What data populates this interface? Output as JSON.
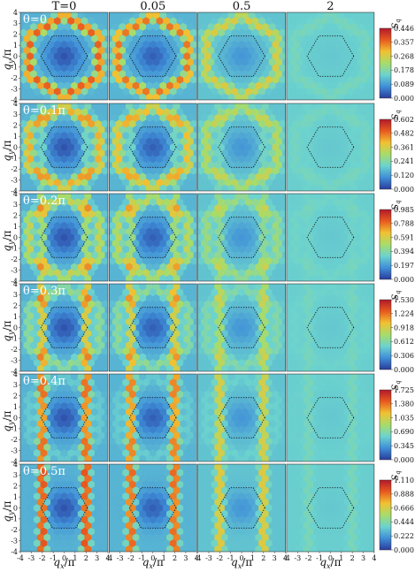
{
  "chart_data": {
    "type": "heatmap",
    "description_grid": "6 rows (theta) x 4 columns (temperature) of hexagonal-lattice structure factor maps",
    "columns": [
      {
        "label": "T=0",
        "T": 0
      },
      {
        "label": "0.05",
        "T": 0.05
      },
      {
        "label": "0.5",
        "T": 0.5
      },
      {
        "label": "2",
        "T": 2
      }
    ],
    "rows": [
      {
        "label": "θ=0",
        "colorbar": {
          "min": 0.0,
          "max": 0.446,
          "ticks": [
            "0.000",
            "0.089",
            "0.178",
            "0.268",
            "0.357",
            "0.446"
          ]
        }
      },
      {
        "label": "θ=0.1π",
        "colorbar": {
          "min": 0.0,
          "max": 0.602,
          "ticks": [
            "0.000",
            "0.120",
            "0.241",
            "0.361",
            "0.482",
            "0.602"
          ]
        }
      },
      {
        "label": "θ=0.2π",
        "colorbar": {
          "min": 0.0,
          "max": 0.985,
          "ticks": [
            "0.000",
            "0.197",
            "0.394",
            "0.591",
            "0.788",
            "0.985"
          ]
        }
      },
      {
        "label": "θ=0.3π",
        "colorbar": {
          "min": 0.0,
          "max": 1.53,
          "ticks": [
            "0.000",
            "0.306",
            "0.612",
            "0.918",
            "1.224",
            "1.530"
          ]
        }
      },
      {
        "label": "θ=0.4π",
        "colorbar": {
          "min": 0.0,
          "max": 1.725,
          "ticks": [
            "0.000",
            "0.345",
            "0.690",
            "1.035",
            "1.380",
            "1.725"
          ]
        }
      },
      {
        "label": "θ=0.5π",
        "colorbar": {
          "min": 0.0,
          "max": 1.11,
          "ticks": [
            "0.000",
            "0.222",
            "0.444",
            "0.666",
            "0.888",
            "1.110"
          ]
        }
      }
    ],
    "x_axis": {
      "label": "q_x/π",
      "ticks": [
        -4,
        -3,
        -2,
        -1,
        0,
        1,
        2,
        3,
        4
      ],
      "range": [
        -4,
        4
      ]
    },
    "y_axis": {
      "label": "q_y/π",
      "ticks": [
        -4,
        -3,
        -2,
        -1,
        0,
        1,
        2,
        3,
        4
      ],
      "range": [
        -4,
        4
      ]
    },
    "colorbar_label": "S_q",
    "colormap": [
      "#2a3b9c",
      "#3f8fd8",
      "#6dd3ce",
      "#a8dc6a",
      "#f1c232",
      "#e85a1f",
      "#b2182b"
    ],
    "overlay": "dotted hexagon (Brillouin zone)"
  },
  "labels": {
    "col_titles": [
      "T=0",
      "0.05",
      "0.5",
      "2"
    ],
    "row_labels": [
      "θ=0",
      "θ=0.1π",
      "θ=0.2π",
      "θ=0.3π",
      "θ=0.4π",
      "θ=0.5π"
    ],
    "xlabel": "q",
    "xlabel_sub": "x",
    "xlabel_tail": "/π",
    "ylabel": "q",
    "ylabel_sub": "y",
    "ylabel_tail": "/π",
    "cb_title": "S",
    "cb_sub": "q"
  }
}
